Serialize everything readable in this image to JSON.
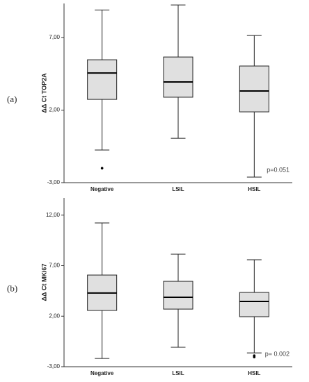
{
  "chart_data": [
    {
      "type": "box",
      "label": "(a)",
      "y_label": "ΔΔ Ct  TOP2A",
      "annotation": "p=0.051",
      "categories": [
        "Negative",
        "LSIL",
        "HSIL"
      ],
      "min": [
        -0.75,
        0.06,
        -2.62
      ],
      "q1": [
        2.74,
        2.89,
        1.88
      ],
      "median": [
        4.56,
        3.94,
        3.32
      ],
      "q3": [
        5.47,
        5.66,
        5.04
      ],
      "max": [
        8.9,
        9.25,
        7.14
      ],
      "outliers": [
        [
          -2.0
        ],
        [],
        []
      ],
      "color": "#e0e0e0",
      "ylim": [
        -3,
        9.35
      ],
      "yticks": [
        {
          "value": -3,
          "label": "-3,00"
        },
        {
          "value": 2,
          "label": "2,00"
        },
        {
          "value": 7,
          "label": "7,00"
        }
      ]
    },
    {
      "type": "box",
      "label": "(b)",
      "y_label": "ΔΔ Ct  MKi67",
      "annotation": "p= 0.002",
      "categories": [
        "Negative",
        "LSIL",
        "HSIL"
      ],
      "min": [
        -2.18,
        -1.08,
        -1.63
      ],
      "q1": [
        2.57,
        2.7,
        1.95
      ],
      "median": [
        4.29,
        3.87,
        3.46
      ],
      "q3": [
        6.07,
        5.45,
        4.35
      ],
      "max": [
        11.23,
        8.13,
        7.58
      ],
      "outliers": [
        [],
        [],
        [
          -1.9,
          -2.04
        ]
      ],
      "color": "#e0e0e0",
      "ylim": [
        -3,
        13.7
      ],
      "yticks": [
        {
          "value": -3,
          "label": "-3,00"
        },
        {
          "value": 2,
          "label": "2,00"
        },
        {
          "value": 7,
          "label": "7,00"
        },
        {
          "value": 12,
          "label": "12,00"
        }
      ]
    }
  ]
}
